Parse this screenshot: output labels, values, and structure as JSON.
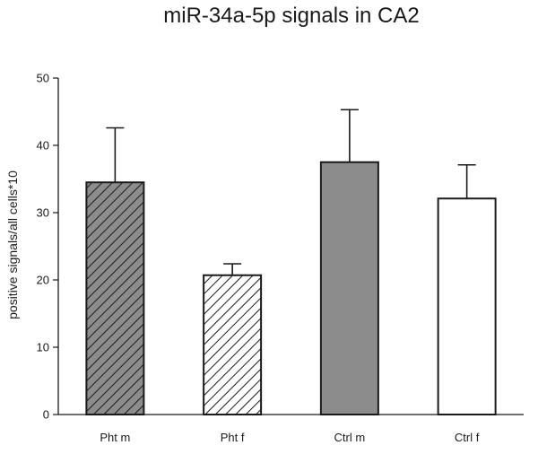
{
  "chart_data": {
    "type": "bar",
    "title": "miR-34a-5p signals in CA2",
    "xlabel": "",
    "ylabel": "positive signals/all cells*10",
    "ylim": [
      0,
      50
    ],
    "yticks": [
      0,
      10,
      20,
      30,
      40,
      50
    ],
    "categories": [
      "Pht m",
      "Pht f",
      "Ctrl m",
      "Ctrl f"
    ],
    "values": [
      34.5,
      20.7,
      37.5,
      32.1
    ],
    "error_upper": [
      42.6,
      22.4,
      45.3,
      37.1
    ],
    "bar_styles": [
      {
        "fill": "#8c8c8c",
        "hatch": true
      },
      {
        "fill": "#ffffff",
        "hatch": true
      },
      {
        "fill": "#8c8c8c",
        "hatch": false
      },
      {
        "fill": "#ffffff",
        "hatch": false
      }
    ],
    "grid": false
  }
}
